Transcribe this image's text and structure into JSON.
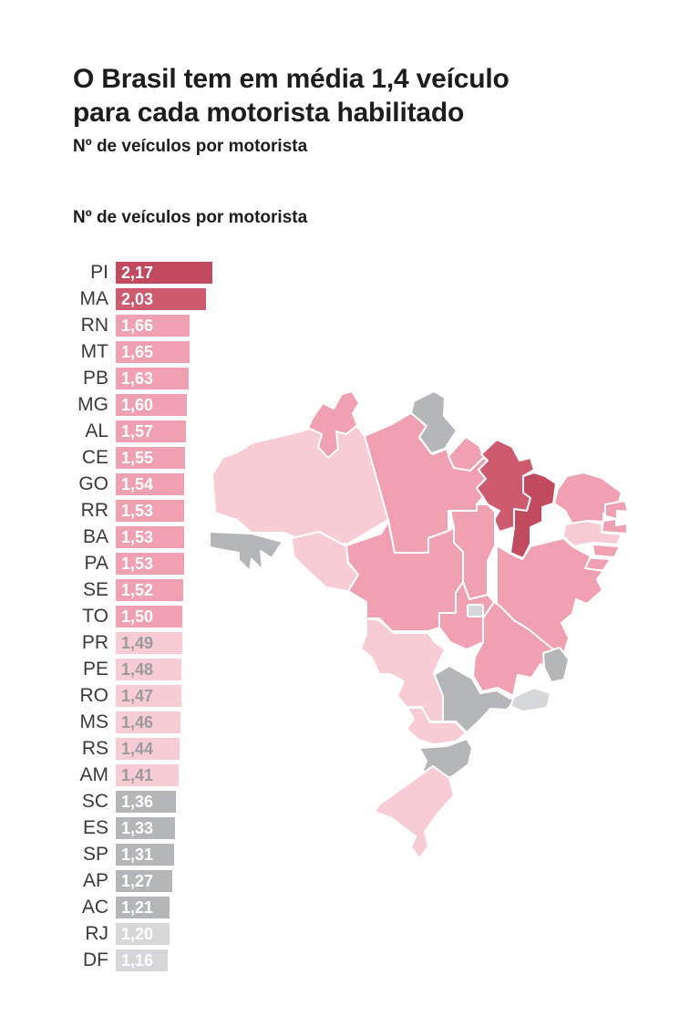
{
  "header": {
    "title_line1": "O Brasil tem em média 1,4 veículo",
    "title_line2": "para cada motorista habilitado",
    "subtitle": "Nº de veículos por motorista",
    "subtitle_repeat": "Nº de veículos por motorista"
  },
  "chart_data": {
    "type": "bar",
    "orientation": "horizontal",
    "title": "Nº de veículos por motorista",
    "xlabel": "",
    "ylabel": "",
    "xlim": [
      0,
      2.17
    ],
    "value_format": "comma-decimal",
    "grid": false,
    "legend": "none",
    "categories": [
      "PI",
      "MA",
      "RN",
      "MT",
      "PB",
      "MG",
      "AL",
      "CE",
      "GO",
      "RR",
      "BA",
      "PA",
      "SE",
      "TO",
      "PR",
      "PE",
      "RO",
      "MS",
      "RS",
      "AM",
      "SC",
      "ES",
      "SP",
      "AP",
      "AC",
      "RJ",
      "DF"
    ],
    "rows": [
      {
        "state": "PI",
        "value": 2.17,
        "value_label": "2,17",
        "color": "#c24a5f",
        "text_color": "#ffffff"
      },
      {
        "state": "MA",
        "value": 2.03,
        "value_label": "2,03",
        "color": "#cd5a6e",
        "text_color": "#ffffff"
      },
      {
        "state": "RN",
        "value": 1.66,
        "value_label": "1,66",
        "color": "#f0a1b1",
        "text_color": "#ffffff"
      },
      {
        "state": "MT",
        "value": 1.65,
        "value_label": "1,65",
        "color": "#f0a1b1",
        "text_color": "#ffffff"
      },
      {
        "state": "PB",
        "value": 1.63,
        "value_label": "1,63",
        "color": "#f0a1b1",
        "text_color": "#ffffff"
      },
      {
        "state": "MG",
        "value": 1.6,
        "value_label": "1,60",
        "color": "#f0a1b1",
        "text_color": "#ffffff"
      },
      {
        "state": "AL",
        "value": 1.57,
        "value_label": "1,57",
        "color": "#f0a1b1",
        "text_color": "#ffffff"
      },
      {
        "state": "CE",
        "value": 1.55,
        "value_label": "1,55",
        "color": "#f0a1b1",
        "text_color": "#ffffff"
      },
      {
        "state": "GO",
        "value": 1.54,
        "value_label": "1,54",
        "color": "#f0a1b1",
        "text_color": "#ffffff"
      },
      {
        "state": "RR",
        "value": 1.53,
        "value_label": "1,53",
        "color": "#f0a1b1",
        "text_color": "#ffffff"
      },
      {
        "state": "BA",
        "value": 1.53,
        "value_label": "1,53",
        "color": "#f0a1b1",
        "text_color": "#ffffff"
      },
      {
        "state": "PA",
        "value": 1.53,
        "value_label": "1,53",
        "color": "#f0a1b1",
        "text_color": "#ffffff"
      },
      {
        "state": "SE",
        "value": 1.52,
        "value_label": "1,52",
        "color": "#f0a1b1",
        "text_color": "#ffffff"
      },
      {
        "state": "TO",
        "value": 1.5,
        "value_label": "1,50",
        "color": "#f0a1b1",
        "text_color": "#ffffff"
      },
      {
        "state": "PR",
        "value": 1.49,
        "value_label": "1,49",
        "color": "#f7ccd5",
        "text_color": "#9b9ba0"
      },
      {
        "state": "PE",
        "value": 1.48,
        "value_label": "1,48",
        "color": "#f7ccd5",
        "text_color": "#9b9ba0"
      },
      {
        "state": "RO",
        "value": 1.47,
        "value_label": "1,47",
        "color": "#f7ccd5",
        "text_color": "#9b9ba0"
      },
      {
        "state": "MS",
        "value": 1.46,
        "value_label": "1,46",
        "color": "#f7ccd5",
        "text_color": "#9b9ba0"
      },
      {
        "state": "RS",
        "value": 1.44,
        "value_label": "1,44",
        "color": "#f7ccd5",
        "text_color": "#9b9ba0"
      },
      {
        "state": "AM",
        "value": 1.41,
        "value_label": "1,41",
        "color": "#f7ccd5",
        "text_color": "#9b9ba0"
      },
      {
        "state": "SC",
        "value": 1.36,
        "value_label": "1,36",
        "color": "#b4b6b8",
        "text_color": "#ffffff"
      },
      {
        "state": "ES",
        "value": 1.33,
        "value_label": "1,33",
        "color": "#b4b6b8",
        "text_color": "#ffffff"
      },
      {
        "state": "SP",
        "value": 1.31,
        "value_label": "1,31",
        "color": "#b4b6b8",
        "text_color": "#ffffff"
      },
      {
        "state": "AP",
        "value": 1.27,
        "value_label": "1,27",
        "color": "#b4b6b8",
        "text_color": "#ffffff"
      },
      {
        "state": "AC",
        "value": 1.21,
        "value_label": "1,21",
        "color": "#b4b6b8",
        "text_color": "#ffffff"
      },
      {
        "state": "RJ",
        "value": 1.2,
        "value_label": "1,20",
        "color": "#d6d7d9",
        "text_color": "#ffffff"
      },
      {
        "state": "DF",
        "value": 1.16,
        "value_label": "1,16",
        "color": "#d6d7d9",
        "text_color": "#ffffff"
      }
    ]
  },
  "map": {
    "name": "brazil-state-choropleth",
    "border_color": "#ffffff",
    "colored_by": "chart_data.rows"
  }
}
